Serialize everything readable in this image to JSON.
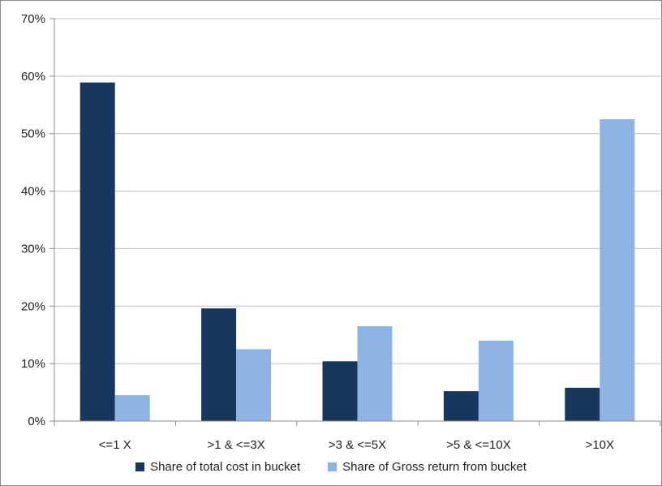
{
  "chart_data": {
    "type": "bar",
    "categories": [
      "<=1 X",
      ">1 & <=3X",
      ">3 & <=5X",
      ">5 & <=10X",
      ">10X"
    ],
    "series": [
      {
        "name": "Share of total cost in bucket",
        "color": "#17375e",
        "values": [
          58.9,
          19.6,
          10.4,
          5.2,
          5.8
        ]
      },
      {
        "name": "Share of Gross return from bucket",
        "color": "#8eb4e3",
        "values": [
          4.5,
          12.5,
          16.5,
          14.0,
          52.5
        ]
      }
    ],
    "ylim": [
      0,
      70
    ],
    "yticks": [
      "0%",
      "10%",
      "20%",
      "30%",
      "40%",
      "50%",
      "60%",
      "70%"
    ],
    "ytick_values": [
      0,
      10,
      20,
      30,
      40,
      50,
      60,
      70
    ],
    "grid": true,
    "legend_position": "bottom",
    "title": "",
    "xlabel": "",
    "ylabel": ""
  }
}
